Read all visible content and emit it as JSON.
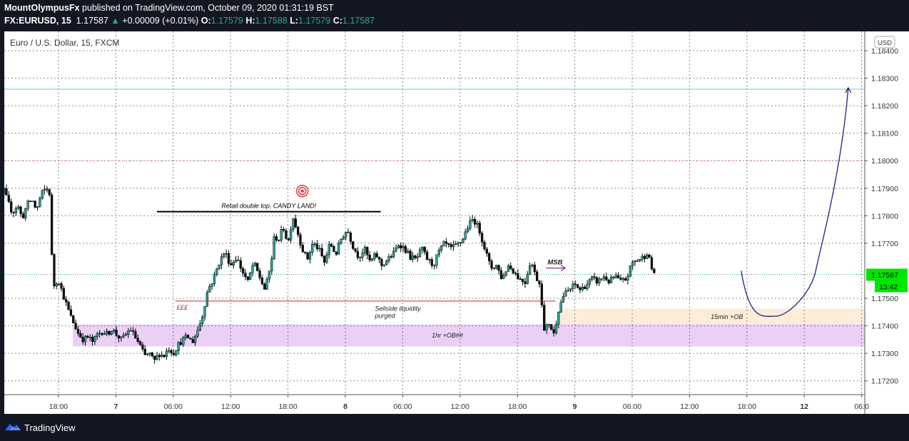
{
  "header": {
    "publisher": "MountOlympusFx",
    "published_text": " published on TradingView.com, October 09, 2020 01:31:19 BST",
    "symbol": "FX:EURUSD, 15",
    "last": "1.17587",
    "change": "+0.00009 (+0.01%)",
    "o_label": "O:",
    "o_value": "1.17579",
    "h_label": "H:",
    "h_value": "1.17588",
    "l_label": "L:",
    "l_value": "1.17579",
    "c_label": "C:",
    "c_value": "1.17587"
  },
  "chart_data": {
    "type": "candlestick",
    "legend": "Euro / U.S. Dollar, 15, FXCM",
    "currency": "USD",
    "ylim": [
      1.1715,
      1.1847
    ],
    "y_ticks": [
      "1.18400",
      "1.18300",
      "1.18200",
      "1.18100",
      "1.18000",
      "1.17900",
      "1.17800",
      "1.17700",
      "1.17500",
      "1.17400",
      "1.17300",
      "1.17200"
    ],
    "y_tick_values": [
      1.184,
      1.183,
      1.182,
      1.181,
      1.18,
      1.179,
      1.178,
      1.177,
      1.175,
      1.174,
      1.173,
      1.172
    ],
    "x_ticks": [
      "18:00",
      "7",
      "06:00",
      "12:00",
      "18:00",
      "8",
      "06:00",
      "12:00",
      "18:00",
      "9",
      "06:00",
      "12:00",
      "18:00",
      "12",
      "06:0"
    ],
    "x_tick_hours": [
      0,
      6,
      12,
      18,
      24,
      30,
      36,
      42,
      48,
      54,
      60,
      66,
      72,
      78,
      84
    ],
    "last_price_label": "1.17587",
    "last_price": 1.17587,
    "countdown": "13:42",
    "horizontal_lines": [
      {
        "price": 1.1826,
        "style": "solid",
        "color": "#4dd0e1"
      },
      {
        "price": 1.18,
        "style": "dotted",
        "color": "#e57373"
      }
    ],
    "price_path": [
      [
        -8.2,
        1.1799
      ],
      [
        -7.8,
        1.1804
      ],
      [
        -7.3,
        1.1798
      ],
      [
        -6.8,
        1.1789
      ],
      [
        -6.3,
        1.1782
      ],
      [
        -5.8,
        1.179
      ],
      [
        -5.3,
        1.1785
      ],
      [
        -4.8,
        1.1781
      ],
      [
        -4.3,
        1.1784
      ],
      [
        -3.8,
        1.1779
      ],
      [
        -3.3,
        1.1784
      ],
      [
        -2.8,
        1.1786
      ],
      [
        -2.3,
        1.1782
      ],
      [
        -1.8,
        1.1788
      ],
      [
        -1.3,
        1.179
      ],
      [
        -0.9,
        1.1788
      ],
      [
        -0.6,
        1.1754
      ],
      [
        0.0,
        1.1757
      ],
      [
        0.4,
        1.1752
      ],
      [
        0.8,
        1.1748
      ],
      [
        1.2,
        1.1744
      ],
      [
        1.7,
        1.174
      ],
      [
        2.1,
        1.1737
      ],
      [
        2.6,
        1.1735
      ],
      [
        3.1,
        1.1736
      ],
      [
        3.6,
        1.1734
      ],
      [
        4.1,
        1.1737
      ],
      [
        4.6,
        1.1738
      ],
      [
        5.1,
        1.1737
      ],
      [
        5.6,
        1.1739
      ],
      [
        6.0,
        1.1737
      ],
      [
        6.6,
        1.1735
      ],
      [
        7.1,
        1.1737
      ],
      [
        7.5,
        1.1739
      ],
      [
        8.0,
        1.1736
      ],
      [
        8.5,
        1.1733
      ],
      [
        9.0,
        1.1729
      ],
      [
        9.5,
        1.173
      ],
      [
        10.0,
        1.1727
      ],
      [
        10.5,
        1.173
      ],
      [
        11.0,
        1.1729
      ],
      [
        11.5,
        1.1732
      ],
      [
        12.0,
        1.173
      ],
      [
        12.5,
        1.1733
      ],
      [
        13.0,
        1.1735
      ],
      [
        13.5,
        1.1736
      ],
      [
        14.0,
        1.1734
      ],
      [
        14.5,
        1.1738
      ],
      [
        15.0,
        1.1743
      ],
      [
        15.6,
        1.1753
      ],
      [
        16.2,
        1.1757
      ],
      [
        16.8,
        1.1763
      ],
      [
        17.4,
        1.1767
      ],
      [
        18.0,
        1.1762
      ],
      [
        18.6,
        1.1765
      ],
      [
        19.2,
        1.176
      ],
      [
        19.8,
        1.1756
      ],
      [
        20.4,
        1.1763
      ],
      [
        21.0,
        1.1758
      ],
      [
        21.6,
        1.1753
      ],
      [
        22.2,
        1.1762
      ],
      [
        22.6,
        1.1773
      ],
      [
        23.0,
        1.1771
      ],
      [
        23.5,
        1.1776
      ],
      [
        24.0,
        1.177
      ],
      [
        24.5,
        1.178
      ],
      [
        25.0,
        1.1774
      ],
      [
        25.5,
        1.1768
      ],
      [
        26.0,
        1.1764
      ],
      [
        26.6,
        1.177
      ],
      [
        27.2,
        1.1768
      ],
      [
        27.8,
        1.1763
      ],
      [
        28.4,
        1.177
      ],
      [
        29.0,
        1.1766
      ],
      [
        29.6,
        1.1772
      ],
      [
        30.2,
        1.1775
      ],
      [
        30.8,
        1.1769
      ],
      [
        31.4,
        1.1765
      ],
      [
        32.0,
        1.1768
      ],
      [
        32.6,
        1.1763
      ],
      [
        33.2,
        1.1766
      ],
      [
        33.8,
        1.1762
      ],
      [
        34.4,
        1.1764
      ],
      [
        35.0,
        1.1766
      ],
      [
        35.6,
        1.177
      ],
      [
        36.2,
        1.1768
      ],
      [
        36.8,
        1.1765
      ],
      [
        37.4,
        1.1764
      ],
      [
        38.0,
        1.1768
      ],
      [
        38.6,
        1.1764
      ],
      [
        39.2,
        1.1762
      ],
      [
        39.8,
        1.1767
      ],
      [
        40.4,
        1.177
      ],
      [
        41.0,
        1.1768
      ],
      [
        41.6,
        1.1769
      ],
      [
        42.2,
        1.1771
      ],
      [
        42.8,
        1.1776
      ],
      [
        43.4,
        1.1779
      ],
      [
        44.0,
        1.1775
      ],
      [
        44.6,
        1.1768
      ],
      [
        45.2,
        1.1761
      ],
      [
        45.8,
        1.1762
      ],
      [
        46.4,
        1.1757
      ],
      [
        47.0,
        1.1762
      ],
      [
        47.6,
        1.176
      ],
      [
        48.2,
        1.1757
      ],
      [
        48.8,
        1.1756
      ],
      [
        49.4,
        1.1764
      ],
      [
        49.9,
        1.1758
      ],
      [
        50.4,
        1.1755
      ],
      [
        50.8,
        1.1738
      ],
      [
        51.3,
        1.1741
      ],
      [
        51.8,
        1.1737
      ],
      [
        52.3,
        1.1746
      ],
      [
        52.8,
        1.1751
      ],
      [
        53.4,
        1.1753
      ],
      [
        54.0,
        1.1755
      ],
      [
        54.6,
        1.1753
      ],
      [
        55.2,
        1.1755
      ],
      [
        55.8,
        1.1757
      ],
      [
        56.4,
        1.1756
      ],
      [
        57.0,
        1.1758
      ],
      [
        57.6,
        1.1756
      ],
      [
        58.2,
        1.1758
      ],
      [
        58.8,
        1.1756
      ],
      [
        59.4,
        1.1757
      ],
      [
        60.0,
        1.1763
      ],
      [
        60.6,
        1.1764
      ],
      [
        61.2,
        1.1765
      ],
      [
        61.6,
        1.1767
      ],
      [
        62.0,
        1.1761
      ],
      [
        62.4,
        1.17587
      ]
    ],
    "annotations": [
      {
        "type": "hline",
        "price": 1.17815,
        "x_from": 10.3,
        "x_to": 33.7,
        "color": "#000000",
        "label": "Retail double top, CANDY LAND!"
      },
      {
        "type": "hline",
        "price": 1.1749,
        "x_from": 12.2,
        "x_to": 52.0,
        "color": "#c62828",
        "label": "£££"
      },
      {
        "type": "text",
        "x": 33.1,
        "price": 1.17455,
        "text": "Sellside liquidity",
        "text2": "purged"
      },
      {
        "type": "arrow",
        "x_from": 51.0,
        "x_to": 53.0,
        "price": 1.1761,
        "color": "#8e24aa",
        "label": "MSB"
      },
      {
        "type": "zone",
        "x_from": 52.5,
        "x_to": 96.8,
        "price_top": 1.17463,
        "price_bottom": 1.17403,
        "color": "#fde9d0",
        "label": "15min +OB"
      },
      {
        "type": "zone",
        "x_from": 1.5,
        "x_to": 99.9,
        "price_top": 1.17405,
        "price_bottom": 1.17325,
        "color": "#e8c8f5",
        "label": "1hr +OB##"
      },
      {
        "type": "projection",
        "color": "#1a237e",
        "points": [
          [
            71.4,
            1.176
          ],
          [
            75.0,
            1.17435
          ],
          [
            79.2,
            1.176
          ],
          [
            82.6,
            1.18265
          ]
        ]
      },
      {
        "type": "target-icon",
        "x": 25.5,
        "price": 1.1789,
        "color": "#e53935"
      },
      {
        "type": "eye-icon",
        "x": 88.0,
        "price": 1.1838,
        "color": "#e53935"
      }
    ]
  },
  "footer": {
    "brand": "TradingView"
  }
}
